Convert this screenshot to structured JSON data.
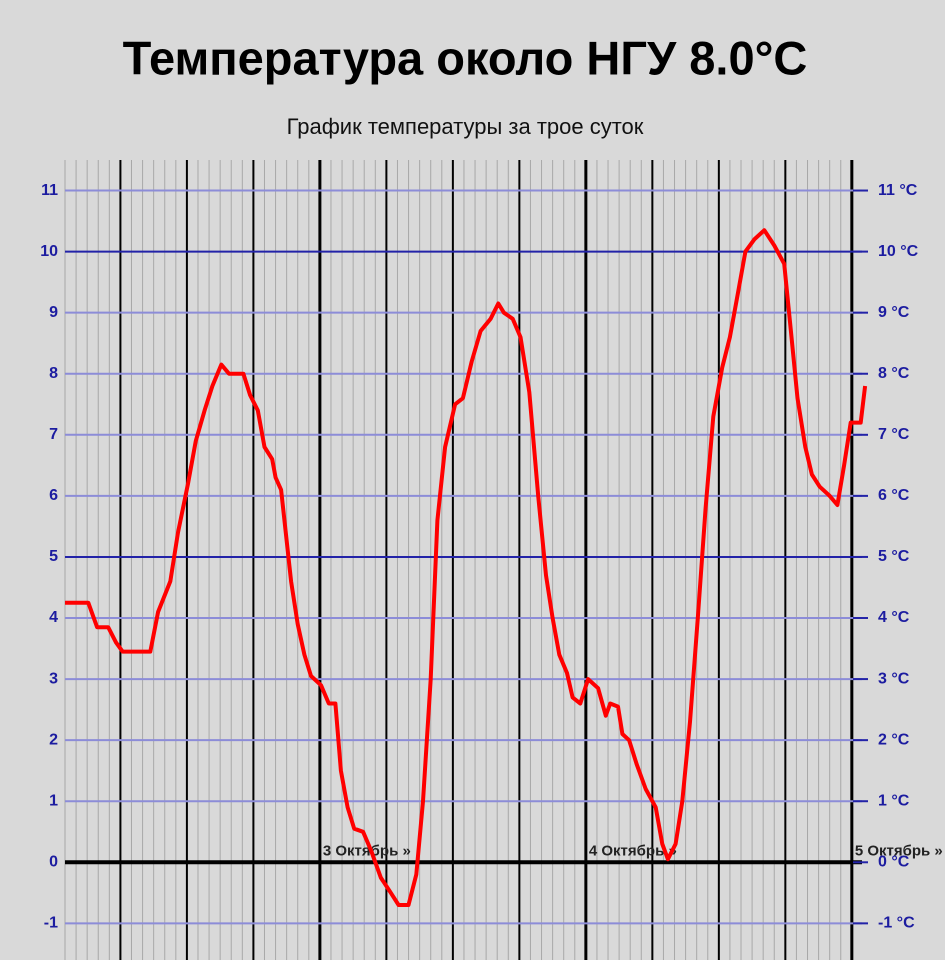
{
  "chart_data": {
    "type": "line",
    "title": "Температура около НГУ 8.0°C",
    "subtitle": "График температуры за трое суток",
    "x": [
      -23,
      -20.9,
      -20.1,
      -19.1,
      -18.4,
      -17.8,
      -15.3,
      -14.6,
      -13.5,
      -12.8,
      -11.9,
      -11.2,
      -10.4,
      -9.7,
      -8.9,
      -8.2,
      -6.9,
      -6.3,
      -5.6,
      -5.0,
      -4.3,
      -4.0,
      -3.5,
      -2.6,
      -2.0,
      -1.4,
      -0.8,
      0.1,
      0.8,
      1.4,
      1.9,
      2.5,
      3.1,
      3.9,
      4.6,
      5.5,
      6.4,
      7.1,
      8.0,
      8.7,
      9.3,
      10.0,
      10.6,
      11.3,
      12.2,
      12.9,
      13.7,
      14.5,
      15.4,
      16.1,
      16.6,
      17.4,
      18.1,
      18.9,
      19.7,
      20.4,
      21.0,
      21.6,
      22.3,
      22.8,
      23.5,
      24.2,
      25.1,
      25.8,
      26.2,
      26.9,
      27.3,
      27.9,
      28.6,
      29.4,
      30.3,
      30.9,
      31.4,
      32.1,
      32.7,
      33.4,
      34.1,
      34.8,
      35.5,
      36.3,
      37.0,
      37.7,
      38.4,
      39.2,
      40.1,
      41.0,
      41.9,
      42.5,
      43.1,
      43.8,
      44.4,
      45.1,
      46.0,
      46.7,
      47.3,
      47.9,
      48.8,
      49.2
    ],
    "values": [
      4.25,
      4.25,
      3.85,
      3.85,
      3.6,
      3.45,
      3.45,
      4.1,
      4.6,
      5.4,
      6.2,
      6.9,
      7.4,
      7.8,
      8.15,
      8.0,
      8.0,
      7.65,
      7.4,
      6.8,
      6.6,
      6.3,
      6.1,
      4.6,
      3.9,
      3.4,
      3.05,
      2.9,
      2.6,
      2.6,
      1.5,
      0.9,
      0.55,
      0.5,
      0.2,
      -0.25,
      -0.5,
      -0.7,
      -0.7,
      -0.2,
      1.0,
      3.0,
      5.6,
      6.8,
      7.5,
      7.6,
      8.2,
      8.7,
      8.9,
      9.15,
      9.0,
      8.9,
      8.6,
      7.7,
      6.0,
      4.7,
      4.0,
      3.4,
      3.1,
      2.7,
      2.6,
      3.0,
      2.85,
      2.4,
      2.6,
      2.55,
      2.1,
      2.0,
      1.6,
      1.2,
      0.9,
      0.3,
      0.05,
      0.3,
      1.0,
      2.3,
      4.0,
      5.8,
      7.3,
      8.1,
      8.6,
      9.3,
      10.0,
      10.2,
      10.35,
      10.1,
      9.8,
      8.7,
      7.6,
      6.8,
      6.35,
      6.15,
      6.0,
      5.85,
      6.5,
      7.2,
      7.2,
      7.8
    ],
    "color": "#ff0000",
    "xlim": [
      -23,
      50
    ],
    "xticks": [
      {
        "value": 0,
        "label": "3 Октябрь »"
      },
      {
        "value": 24,
        "label": "4 Октябрь »"
      },
      {
        "value": 48,
        "label": "5 Октябрь »"
      }
    ],
    "ylim": [
      -1.6,
      11.5
    ],
    "yticks": [
      -1,
      0,
      1,
      2,
      3,
      4,
      5,
      6,
      7,
      8,
      9,
      10,
      11
    ],
    "y2lim": [
      -1.6,
      11.5
    ],
    "y2ticks": [
      {
        "value": -1,
        "label": "-1 °C"
      },
      {
        "value": 0,
        "label": "0 °C"
      },
      {
        "value": 1,
        "label": "1 °C"
      },
      {
        "value": 2,
        "label": "2 °C"
      },
      {
        "value": 3,
        "label": "3 °C"
      },
      {
        "value": 4,
        "label": "4 °C"
      },
      {
        "value": 5,
        "label": "5 °C"
      },
      {
        "value": 6,
        "label": "6 °C"
      },
      {
        "value": 7,
        "label": "7 °C"
      },
      {
        "value": 8,
        "label": "8 °C"
      },
      {
        "value": 9,
        "label": "9 °C"
      },
      {
        "value": 10,
        "label": "10 °C"
      },
      {
        "value": 11,
        "label": "11 °C"
      }
    ],
    "grid": true
  }
}
